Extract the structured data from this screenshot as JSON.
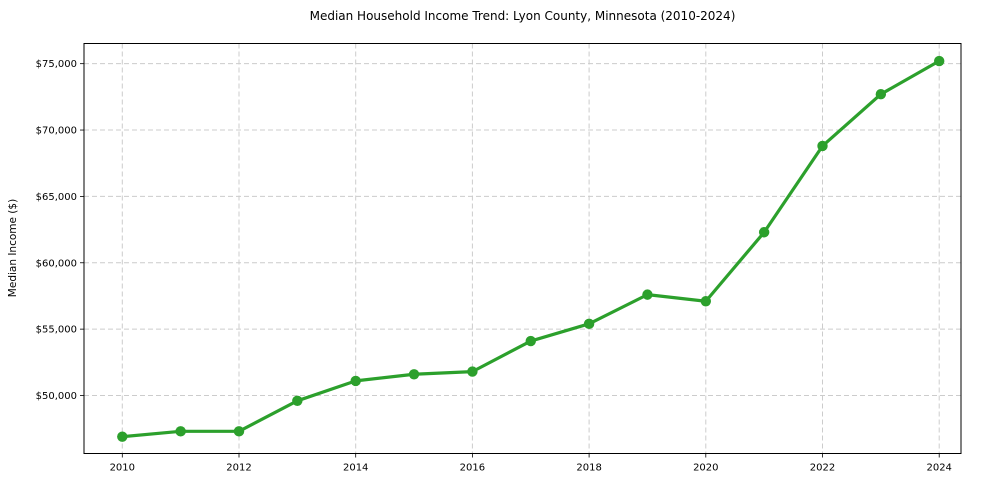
{
  "chart_data": {
    "type": "line",
    "title": "Median Household Income Trend: Lyon County, Minnesota (2010-2024)",
    "xlabel": "",
    "ylabel": "Median Income ($)",
    "x": [
      2010,
      2011,
      2012,
      2013,
      2014,
      2015,
      2016,
      2017,
      2018,
      2019,
      2020,
      2021,
      2022,
      2023,
      2024
    ],
    "series": [
      {
        "name": "Median household income",
        "color": "#2ca02c",
        "marker": "circle",
        "values": [
          46900,
          47300,
          47300,
          49600,
          51100,
          51600,
          51800,
          54100,
          55400,
          57600,
          57100,
          62300,
          68800,
          72700,
          75200
        ]
      }
    ],
    "xtick_values": [
      2010,
      2012,
      2014,
      2016,
      2018,
      2020,
      2022,
      2024
    ],
    "xtick_labels": [
      "2010",
      "2012",
      "2014",
      "2016",
      "2018",
      "2020",
      "2022",
      "2024"
    ],
    "ytick_values": [
      50000,
      55000,
      60000,
      65000,
      70000,
      75000
    ],
    "ytick_labels": [
      "$50,000",
      "$55,000",
      "$60,000",
      "$65,000",
      "$70,000",
      "$75,000"
    ],
    "xlim": [
      2009.34,
      2024.37
    ],
    "ylim": [
      45630,
      76520
    ],
    "grid": {
      "visible": true,
      "style": "dashed",
      "color": "#cccccc"
    },
    "legend": {
      "visible": false
    },
    "line_color": "#2ca02c",
    "marker_color": "#2ca02c",
    "spine_color": "#000000",
    "text_color": "#000000",
    "background_color": "#ffffff"
  }
}
